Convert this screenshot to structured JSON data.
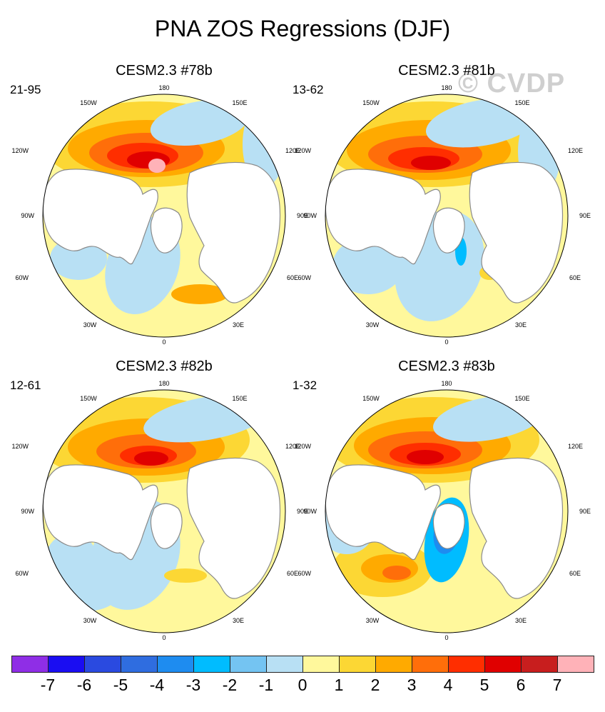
{
  "figure": {
    "title": "PNA ZOS Regressions (DJF)",
    "watermark": "© CVDP"
  },
  "panels": [
    {
      "title": "CESM2.3 #78b",
      "period": "21-95"
    },
    {
      "title": "CESM2.3 #81b",
      "period": "13-62"
    },
    {
      "title": "CESM2.3 #82b",
      "period": "12-61"
    },
    {
      "title": "CESM2.3 #83b",
      "period": "1-32"
    }
  ],
  "lon_labels": {
    "top": "180",
    "bottom": "0",
    "upper_left": "150W",
    "upper_right": "150E",
    "left_upper": "120W",
    "right_upper": "120E",
    "left": "90W",
    "right": "90E",
    "left_lower": "60W",
    "right_lower": "60E",
    "lower_left": "30W",
    "lower_right": "30E"
  },
  "colorbar": {
    "ticks": [
      "-7",
      "-6",
      "-5",
      "-4",
      "-3",
      "-2",
      "-1",
      "0",
      "1",
      "2",
      "3",
      "4",
      "5",
      "6",
      "7"
    ],
    "colors": [
      "#8f2ee6",
      "#1a0df2",
      "#2a4ae0",
      "#2f6de0",
      "#1e8cf0",
      "#00bcff",
      "#74c4f2",
      "#b8e0f4",
      "#fff89c",
      "#fcd734",
      "#ffaa00",
      "#ff6e0a",
      "#ff2e00",
      "#e00000",
      "#c81e1e",
      "#ffb2b8"
    ]
  },
  "colors": {
    "land": "#ffffff",
    "coast": "#8a8a8a",
    "ocean_base": "#fff89c"
  }
}
